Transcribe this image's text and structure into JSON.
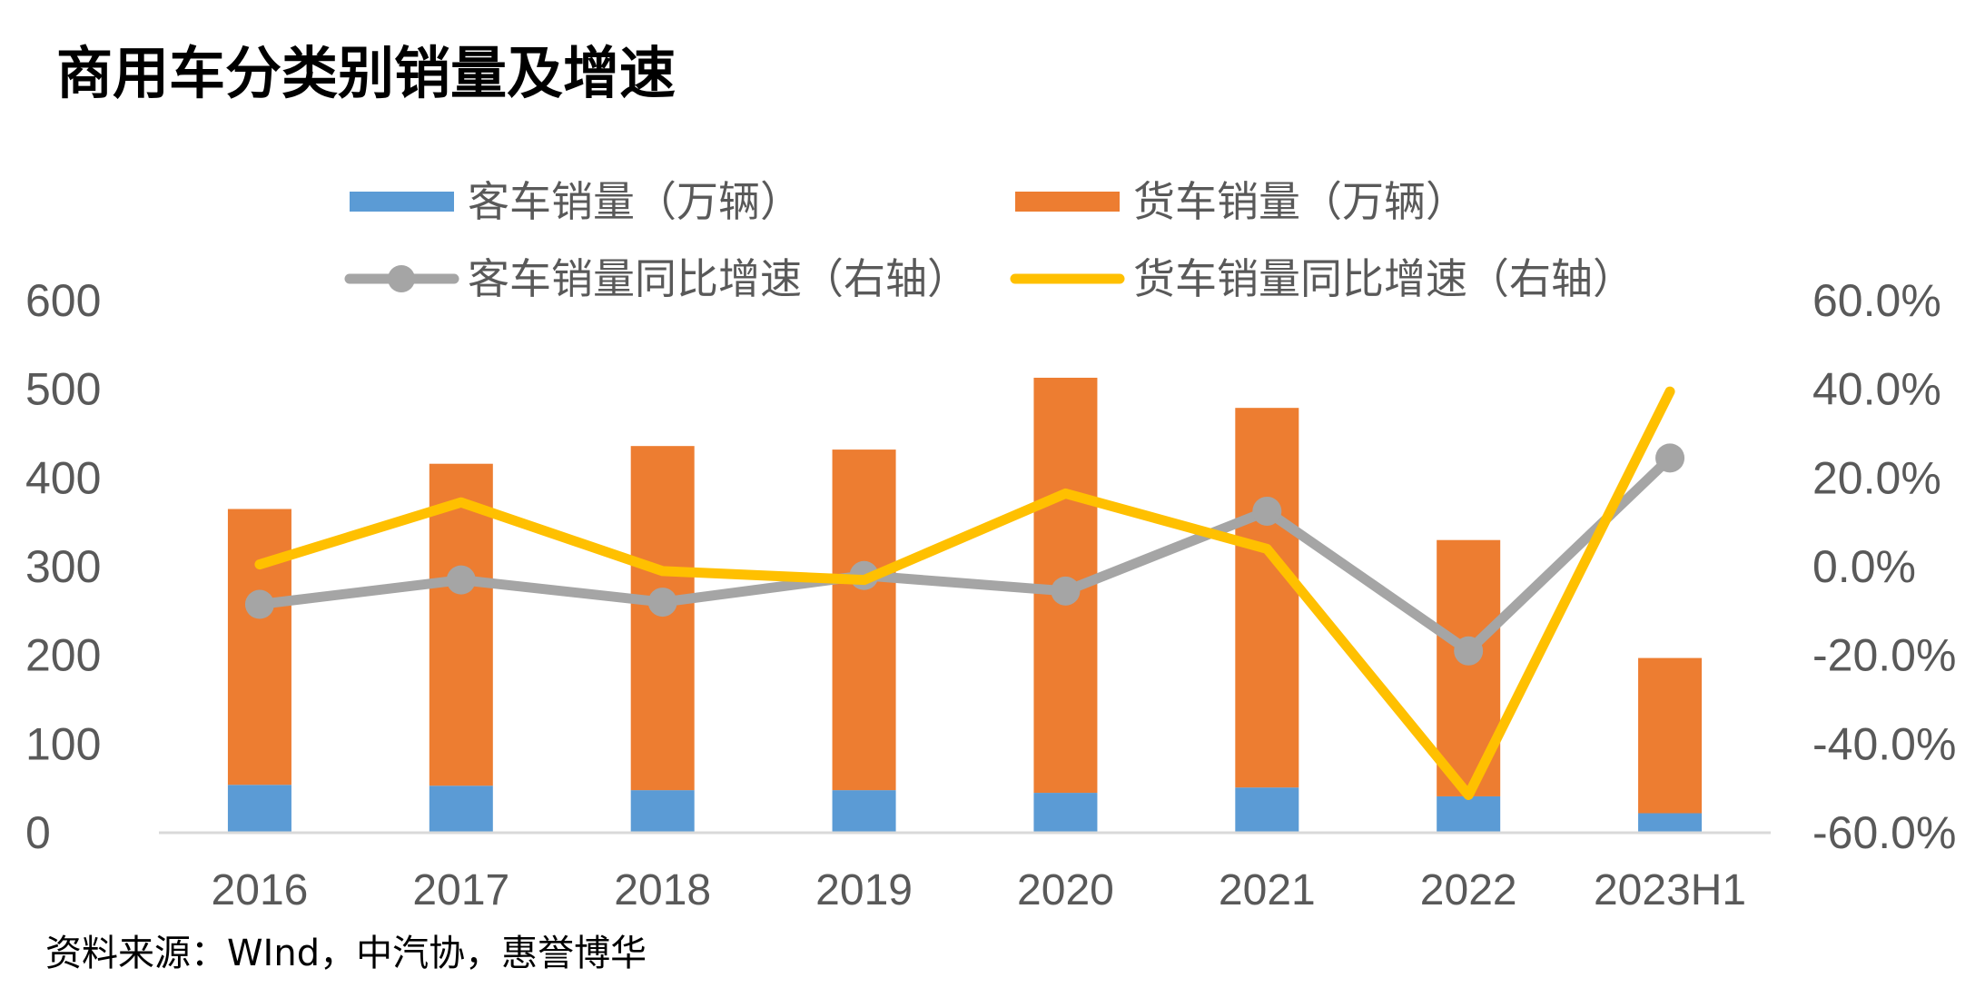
{
  "chart_data": {
    "type": "bar",
    "title": "商用车分类别销量及增速",
    "source": "资料来源：WInd，中汽协，惠誉博华",
    "categories": [
      "2016",
      "2017",
      "2018",
      "2019",
      "2020",
      "2021",
      "2022",
      "2023H1"
    ],
    "stacked": true,
    "y_left": {
      "ylim": [
        0,
        600
      ],
      "ticks": [
        "0",
        "100",
        "200",
        "300",
        "400",
        "500",
        "600"
      ]
    },
    "y_right": {
      "ylim": [
        -0.6,
        0.6
      ],
      "ticks": [
        "-60.0%",
        "-40.0%",
        "-20.0%",
        "0.0%",
        "20.0%",
        "40.0%",
        "60.0%"
      ]
    },
    "grid": false,
    "legend_position": "top",
    "series": [
      {
        "name": "客车销量（万辆）",
        "type": "bar",
        "axis": "left",
        "color": "#5B9BD5",
        "values": [
          54,
          53,
          48,
          48,
          45,
          51,
          41,
          22
        ]
      },
      {
        "name": "货车销量（万辆）",
        "type": "bar",
        "axis": "left",
        "color": "#ED7D31",
        "values": [
          311,
          363,
          388,
          384,
          468,
          428,
          289,
          175
        ]
      },
      {
        "name": "客车销量同比增速（右轴）",
        "type": "line",
        "axis": "right",
        "color": "#A5A5A5",
        "marker": "circle",
        "values": [
          -0.085,
          -0.03,
          -0.08,
          -0.02,
          -0.055,
          0.125,
          -0.19,
          0.245
        ]
      },
      {
        "name": "货车销量同比增速（右轴）",
        "type": "line",
        "axis": "right",
        "color": "#FFC000",
        "marker": "none",
        "values": [
          0.005,
          0.145,
          -0.01,
          -0.03,
          0.165,
          0.04,
          -0.515,
          0.395
        ]
      }
    ]
  }
}
